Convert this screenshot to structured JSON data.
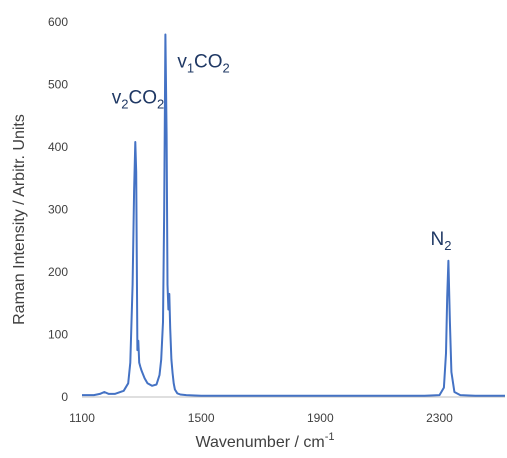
{
  "chart_data": {
    "type": "line",
    "title": "",
    "xlabel": "Wavenumber / cm",
    "xlabel_sup": "-1",
    "ylabel": "Raman Intensity / Arbitr. Units",
    "xlim": [
      1100,
      2520
    ],
    "ylim": [
      0,
      600
    ],
    "xticks": [
      1100,
      1500,
      1900,
      2300
    ],
    "yticks": [
      0,
      100,
      200,
      300,
      400,
      500,
      600
    ],
    "grid": false,
    "legend": "none",
    "line_color": "#4472c4",
    "series": [
      {
        "x": [
          1100,
          1140,
          1160,
          1175,
          1190,
          1210,
          1240,
          1255,
          1262,
          1270,
          1275,
          1279,
          1282,
          1286,
          1289,
          1292,
          1296,
          1300,
          1310,
          1320,
          1335,
          1350,
          1360,
          1366,
          1372,
          1376,
          1380,
          1384,
          1387,
          1390,
          1393,
          1396,
          1400,
          1404,
          1408,
          1412,
          1420,
          1430,
          1450,
          1500,
          1700,
          1900,
          2150,
          2250,
          2300,
          2315,
          2322,
          2326,
          2330,
          2335,
          2340,
          2350,
          2370,
          2420,
          2520
        ],
        "y": [
          3,
          3,
          5,
          8,
          5,
          5,
          10,
          22,
          55,
          180,
          330,
          408,
          360,
          75,
          90,
          55,
          48,
          42,
          30,
          22,
          18,
          20,
          35,
          60,
          120,
          300,
          580,
          420,
          180,
          140,
          165,
          110,
          60,
          38,
          22,
          12,
          6,
          4,
          3,
          2,
          2,
          2,
          2,
          2,
          3,
          15,
          70,
          160,
          218,
          120,
          40,
          8,
          3,
          2,
          2
        ]
      }
    ],
    "annotations": [
      {
        "base": "v",
        "sub1": "2",
        "mid": "CO",
        "sub2": "2",
        "x": 1200,
        "y": 470
      },
      {
        "base": "v",
        "sub1": "1",
        "mid": "CO",
        "sub2": "2",
        "x": 1420,
        "y": 527
      },
      {
        "base": "N",
        "sub1": "",
        "mid": "",
        "sub2": "2",
        "x": 2270,
        "y": 243
      }
    ]
  }
}
